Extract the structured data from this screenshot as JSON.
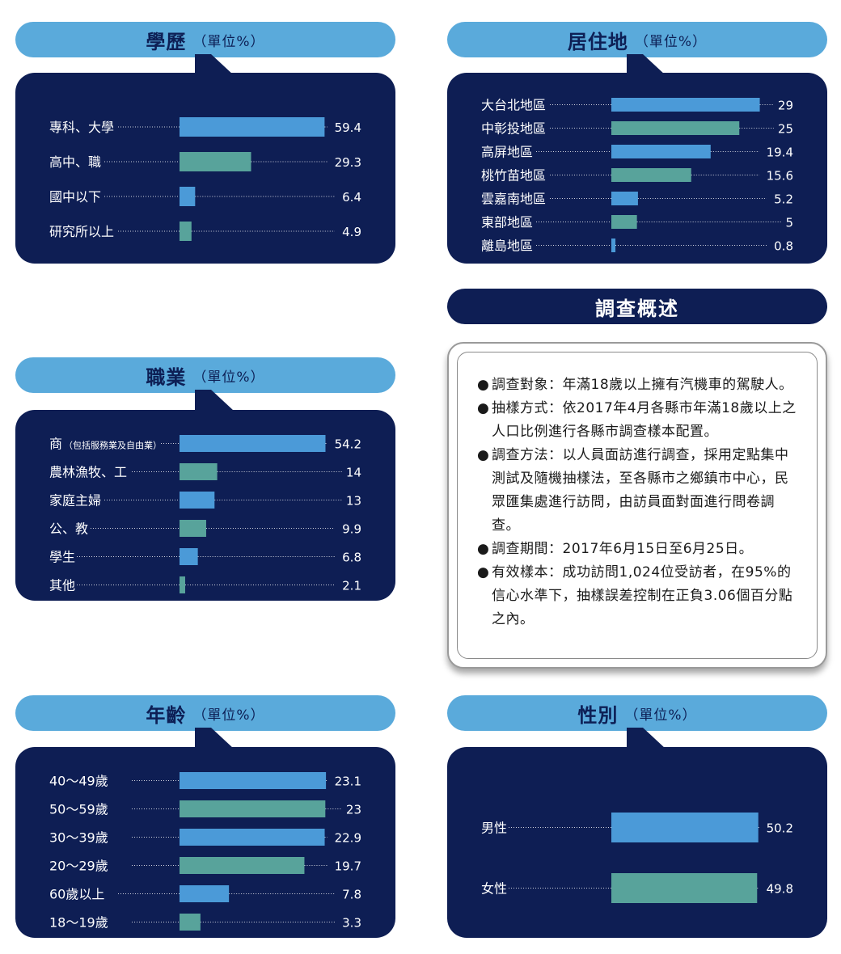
{
  "colors": {
    "navy": "#0e1e54",
    "blue": "#4b9ad8",
    "teal": "#58a39b",
    "header": "#5aaadb",
    "header_text": "#0d1f55",
    "label": "#ffffff"
  },
  "summary": {
    "title": "調查概述",
    "items": [
      {
        "bullet": "●",
        "text": "調查對象：年滿18歲以上擁有汽機車的駕駛人。"
      },
      {
        "bullet": "●",
        "text": "抽樣方式：依2017年4月各縣市年滿18歲以上之人口比例進行各縣市調查樣本配置。"
      },
      {
        "bullet": "●",
        "text": "調查方法：以人員面訪進行調查，採用定點集中測試及隨機抽樣法，至各縣市之鄉鎮市中心，民眾匯集處進行訪問，由訪員面對面進行問卷調查。"
      },
      {
        "bullet": "●",
        "text": "調查期間：2017年6月15日至6月25日。"
      },
      {
        "bullet": "●",
        "text": "有效樣本：成功訪問1,024位受訪者，在95%的信心水準下，抽樣誤差控制在正負3.06個百分點之內。"
      }
    ]
  },
  "chart_data": [
    {
      "id": "education",
      "type": "bar",
      "title": "學歷",
      "unit": "（單位%）",
      "categories": [
        "專科、大學",
        "高中、職",
        "國中以下",
        "研究所以上"
      ],
      "values": [
        59.4,
        29.3,
        6.4,
        4.9
      ],
      "value_labels": [
        "59.4",
        "29.3",
        "6.4",
        "4.9"
      ]
    },
    {
      "id": "residence",
      "type": "bar",
      "title": "居住地",
      "unit": "（單位%）",
      "categories": [
        "大台北地區",
        "中彰投地區",
        "高屏地區",
        "桃竹苗地區",
        "雲嘉南地區",
        "東部地區",
        "離島地區"
      ],
      "values": [
        29,
        25,
        19.4,
        15.6,
        5.2,
        5,
        0.8
      ],
      "value_labels": [
        "29",
        "25",
        "19.4",
        "15.6",
        "5.2",
        "5",
        "0.8"
      ]
    },
    {
      "id": "occupation",
      "type": "bar",
      "title": "職業",
      "unit": "（單位%）",
      "categories": [
        "商",
        "農林漁牧、工",
        "家庭主婦",
        "公、教",
        "學生",
        "其他"
      ],
      "category_notes": [
        "（包括服務業及自由業）",
        "",
        "",
        "",
        "",
        ""
      ],
      "values": [
        54.2,
        14,
        13,
        9.9,
        6.8,
        2.1
      ],
      "value_labels": [
        "54.2",
        "14",
        "13",
        "9.9",
        "6.8",
        "2.1"
      ]
    },
    {
      "id": "age",
      "type": "bar",
      "title": "年齡",
      "unit": "（單位%）",
      "categories": [
        "40～49歲",
        "50～59歲",
        "30～39歲",
        "20～29歲",
        "60歲以上",
        "18～19歲"
      ],
      "values": [
        23.1,
        23,
        22.9,
        19.7,
        7.8,
        3.3
      ],
      "value_labels": [
        "23.1",
        "23",
        "22.9",
        "19.7",
        "7.8",
        "3.3"
      ]
    },
    {
      "id": "gender",
      "type": "bar",
      "title": "性別",
      "unit": "（單位%）",
      "categories": [
        "男性",
        "女性"
      ],
      "values": [
        50.2,
        49.8
      ],
      "value_labels": [
        "50.2",
        "49.8"
      ]
    }
  ]
}
